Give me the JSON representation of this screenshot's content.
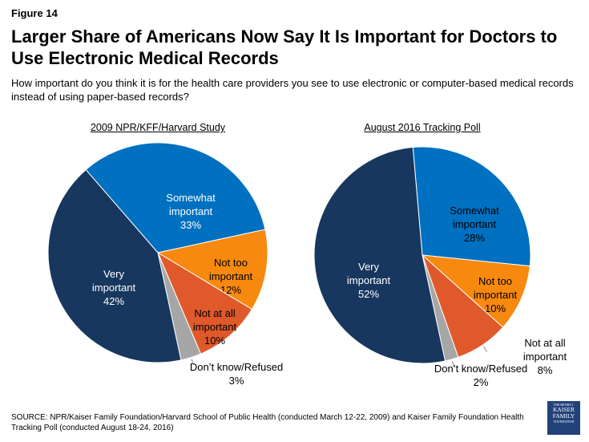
{
  "figure_label": "Figure 14",
  "title": "Larger Share of Americans Now Say It Is Important for Doctors to Use Electronic Medical Records",
  "subtitle": "How important do you think it is for the health care providers you see to use electronic or computer-based medical records instead of using paper-based records?",
  "source": "SOURCE: NPR/Kaiser Family Foundation/Harvard School of Public Health (conducted March 12-22, 2009) and Kaiser Family Foundation Health Tracking Poll (conducted August 18-24, 2016)",
  "logo": {
    "line1": "THE HENRY J.",
    "line2": "KAISER",
    "line3": "FAMILY",
    "line4": "FOUNDATION"
  },
  "chart_data": [
    {
      "type": "pie",
      "title": "2009 NPR/KFF/Harvard Study",
      "slices": [
        {
          "label": "Somewhat important",
          "value": 33,
          "color": "#0070c0"
        },
        {
          "label": "Not too important",
          "value": 12,
          "color": "#f7890f"
        },
        {
          "label": "Not at all important",
          "value": 10,
          "color": "#e0592a"
        },
        {
          "label": "Don’t know/Refused",
          "value": 3,
          "color": "#a6a6a6"
        },
        {
          "label": "Very important",
          "value": 42,
          "color": "#17375e"
        }
      ]
    },
    {
      "type": "pie",
      "title": "August 2016 Tracking Poll",
      "slices": [
        {
          "label": "Somewhat important",
          "value": 28,
          "color": "#0070c0"
        },
        {
          "label": "Not too important",
          "value": 10,
          "color": "#f7890f"
        },
        {
          "label": "Not at all important",
          "value": 8,
          "color": "#e0592a"
        },
        {
          "label": "Don’t know/Refused",
          "value": 2,
          "color": "#a6a6a6"
        },
        {
          "label": "Very important",
          "value": 52,
          "color": "#17375e"
        }
      ]
    }
  ]
}
